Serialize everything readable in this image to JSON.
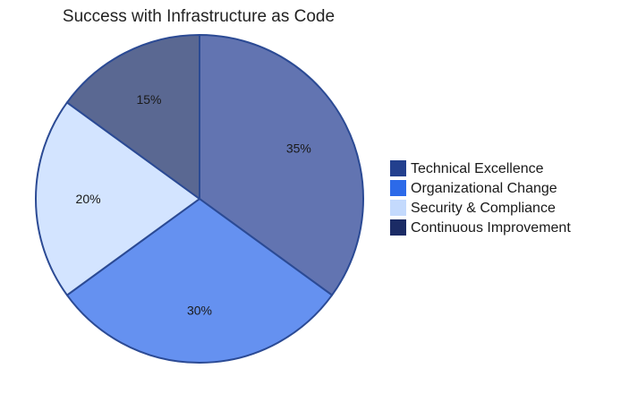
{
  "chart_data": {
    "type": "pie",
    "title": "Success with Infrastructure as Code",
    "slices": [
      {
        "name": "Technical Excellence",
        "value": 35,
        "label": "35%",
        "color": "#6274b1",
        "legend_color": "#23408e"
      },
      {
        "name": "Organizational Change",
        "value": 30,
        "label": "30%",
        "color": "#6591f0",
        "legend_color": "#2c6ae9"
      },
      {
        "name": "Security & Compliance",
        "value": 20,
        "label": "20%",
        "color": "#d3e4ff",
        "legend_color": "#c4dafd"
      },
      {
        "name": "Continuous Improvement",
        "value": 15,
        "label": "15%",
        "color": "#5a6892",
        "legend_color": "#1b2b65"
      }
    ],
    "start_angle_deg": 0,
    "direction": "clockwise",
    "slice_border_color": "#2b4a94",
    "legend_placement": "right"
  }
}
